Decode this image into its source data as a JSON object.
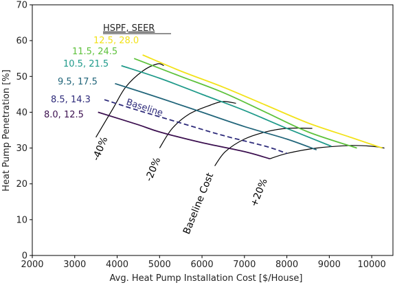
{
  "chart_data": {
    "type": "line",
    "xlabel": "Avg. Heat Pump Installation Cost [$/House]",
    "ylabel": "Heat Pump Penetration [%]",
    "xlim": [
      2000,
      10500
    ],
    "ylim": [
      0,
      70
    ],
    "xticks": [
      2000,
      3000,
      4000,
      5000,
      6000,
      7000,
      8000,
      9000,
      10000
    ],
    "yticks": [
      0,
      10,
      20,
      30,
      40,
      50,
      60,
      70
    ],
    "grid": false,
    "legend": {
      "title": "HSPF, SEER",
      "placement": "top-left, labels aligned to curve starts"
    },
    "series": [
      {
        "name": "8.0, 12.5",
        "color": "#3b0f4f",
        "dash": "solid",
        "points": [
          [
            3550,
            40.0
          ],
          [
            4500,
            36.5
          ],
          [
            5000,
            34.5
          ],
          [
            6000,
            31.5
          ],
          [
            7000,
            29.0
          ],
          [
            7600,
            27.0
          ]
        ]
      },
      {
        "name": "8.5, 14.3",
        "color": "#2d2a7a",
        "dash": "dashed",
        "label": "Baseline",
        "points": [
          [
            3700,
            43.5
          ],
          [
            4500,
            40.5
          ],
          [
            5500,
            37.0
          ],
          [
            6500,
            33.5
          ],
          [
            7500,
            30.5
          ],
          [
            8000,
            28.5
          ]
        ]
      },
      {
        "name": "9.5, 17.5",
        "color": "#21657a",
        "dash": "solid",
        "points": [
          [
            3950,
            48.0
          ],
          [
            5000,
            44.0
          ],
          [
            6000,
            40.0
          ],
          [
            7000,
            36.0
          ],
          [
            8000,
            32.5
          ],
          [
            8700,
            29.5
          ]
        ]
      },
      {
        "name": "10.5, 21.5",
        "color": "#1f9a8a",
        "dash": "solid",
        "points": [
          [
            4100,
            53.0
          ],
          [
            5000,
            49.5
          ],
          [
            6000,
            45.0
          ],
          [
            7000,
            40.5
          ],
          [
            8000,
            35.5
          ],
          [
            9050,
            30.5
          ]
        ]
      },
      {
        "name": "11.5, 24.5",
        "color": "#5ec23c",
        "dash": "solid",
        "points": [
          [
            4400,
            55.0
          ],
          [
            5500,
            50.0
          ],
          [
            6500,
            45.5
          ],
          [
            7500,
            40.0
          ],
          [
            8500,
            34.5
          ],
          [
            9650,
            30.0
          ]
        ]
      },
      {
        "name": "12.5, 28.0",
        "color": "#f2e21a",
        "dash": "solid",
        "points": [
          [
            4600,
            56.0
          ],
          [
            5500,
            51.5
          ],
          [
            6500,
            47.0
          ],
          [
            7500,
            42.0
          ],
          [
            8500,
            37.0
          ],
          [
            9500,
            33.0
          ],
          [
            10250,
            30.0
          ]
        ]
      }
    ],
    "cost_contours": [
      {
        "label": "-40%",
        "points": [
          [
            3500,
            33.0
          ],
          [
            3900,
            41.0
          ],
          [
            4200,
            47.0
          ],
          [
            4600,
            51.5
          ],
          [
            4950,
            53.5
          ],
          [
            5100,
            53.0
          ]
        ]
      },
      {
        "label": "-20%",
        "points": [
          [
            5000,
            30.0
          ],
          [
            5300,
            35.5
          ],
          [
            5700,
            39.5
          ],
          [
            6200,
            42.0
          ],
          [
            6500,
            43.0
          ],
          [
            6800,
            42.5
          ]
        ]
      },
      {
        "label": "Baseline Cost",
        "points": [
          [
            6300,
            25.0
          ],
          [
            6550,
            29.0
          ],
          [
            7000,
            32.5
          ],
          [
            7500,
            34.5
          ],
          [
            8000,
            35.5
          ],
          [
            8600,
            35.5
          ]
        ]
      },
      {
        "label": "+20%",
        "points": [
          [
            7600,
            27.0
          ],
          [
            8000,
            28.5
          ],
          [
            8700,
            30.0
          ],
          [
            9500,
            30.7
          ],
          [
            10000,
            30.5
          ],
          [
            10300,
            30.0
          ]
        ]
      }
    ]
  }
}
